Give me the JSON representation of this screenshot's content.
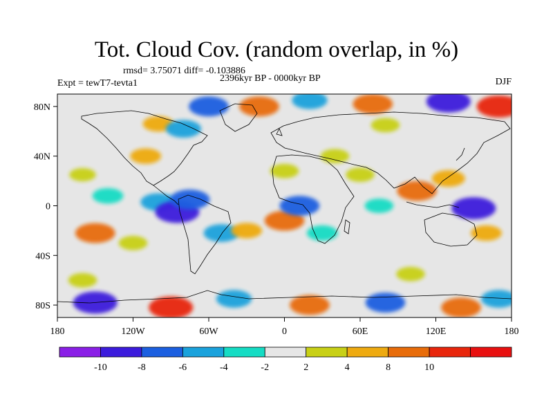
{
  "header": {
    "title": "Tot. Cloud Cov. (random overlap, in %)",
    "stats": "rmsd= 3.75071 diff= -0.103886",
    "period": "2396kyr BP - 0000kyr BP",
    "experiment": "Expt = tewT7-tevta1",
    "season": "DJF"
  },
  "map": {
    "projection": "cylindrical equidistant",
    "lon_range": [
      -180,
      180
    ],
    "lat_range": [
      -90,
      90
    ],
    "background_color": "#e6e6e6",
    "coastline_color": "#000000"
  },
  "axes": {
    "x_ticks": [
      {
        "lon": -180,
        "label": "180"
      },
      {
        "lon": -120,
        "label": "120W"
      },
      {
        "lon": -60,
        "label": "60W"
      },
      {
        "lon": 0,
        "label": "0"
      },
      {
        "lon": 60,
        "label": "60E"
      },
      {
        "lon": 120,
        "label": "120E"
      },
      {
        "lon": 180,
        "label": "180"
      }
    ],
    "y_ticks": [
      {
        "lat": 80,
        "label": "80N"
      },
      {
        "lat": 40,
        "label": "40N"
      },
      {
        "lat": 0,
        "label": "0"
      },
      {
        "lat": -40,
        "label": "40S"
      },
      {
        "lat": -80,
        "label": "80S"
      }
    ]
  },
  "colorbar": {
    "colors": [
      "#8a1fe6",
      "#3c1cdc",
      "#1c5fe0",
      "#1aa2dc",
      "#15dcc4",
      "#e6e6e6",
      "#c8d016",
      "#eeaa10",
      "#e86c0a",
      "#e8260c",
      "#e81010"
    ],
    "labels": [
      "-10",
      "-8",
      "-6",
      "-4",
      "-2",
      "2",
      "4",
      "8",
      "10"
    ]
  },
  "chart_data": {
    "type": "heatmap",
    "title": "Tot. Cloud Cov. (random overlap, in %)",
    "variable": "total cloud cover difference",
    "units": "%",
    "contour_levels": [
      -10,
      -8,
      -6,
      -4,
      -2,
      2,
      4,
      8,
      10
    ],
    "x_range": [
      -180,
      180
    ],
    "y_range": [
      -90,
      90
    ],
    "rmsd": 3.75071,
    "diff": -0.103886,
    "anomalies": [
      {
        "lon": -140,
        "lat": 8,
        "value": -4
      },
      {
        "lon": -100,
        "lat": 3,
        "value": -6
      },
      {
        "lon": -85,
        "lat": -5,
        "value": -10
      },
      {
        "lon": -75,
        "lat": 5,
        "value": -8
      },
      {
        "lon": -110,
        "lat": 40,
        "value": 4
      },
      {
        "lon": -160,
        "lat": 25,
        "value": 2
      },
      {
        "lon": -150,
        "lat": -22,
        "value": 8
      },
      {
        "lon": -120,
        "lat": -30,
        "value": 3
      },
      {
        "lon": -50,
        "lat": -22,
        "value": -6
      },
      {
        "lon": -30,
        "lat": -20,
        "value": 4
      },
      {
        "lon": 0,
        "lat": -12,
        "value": 8
      },
      {
        "lon": 12,
        "lat": 0,
        "value": -8
      },
      {
        "lon": 30,
        "lat": -22,
        "value": -4
      },
      {
        "lon": 0,
        "lat": 28,
        "value": 3
      },
      {
        "lon": 60,
        "lat": 25,
        "value": 3
      },
      {
        "lon": 75,
        "lat": 0,
        "value": -3
      },
      {
        "lon": 105,
        "lat": 12,
        "value": 8
      },
      {
        "lon": 130,
        "lat": 22,
        "value": 5
      },
      {
        "lon": 150,
        "lat": -2,
        "value": -10
      },
      {
        "lon": 160,
        "lat": -22,
        "value": 4
      },
      {
        "lon": 40,
        "lat": 40,
        "value": 3
      },
      {
        "lon": -60,
        "lat": 80,
        "value": -8
      },
      {
        "lon": -20,
        "lat": 80,
        "value": 8
      },
      {
        "lon": 20,
        "lat": 85,
        "value": -6
      },
      {
        "lon": 70,
        "lat": 82,
        "value": 8
      },
      {
        "lon": 130,
        "lat": 84,
        "value": -10
      },
      {
        "lon": 170,
        "lat": 80,
        "value": 10
      },
      {
        "lon": -100,
        "lat": 66,
        "value": 4
      },
      {
        "lon": -80,
        "lat": 62,
        "value": -6
      },
      {
        "lon": 80,
        "lat": 65,
        "value": 3
      },
      {
        "lon": -150,
        "lat": -78,
        "value": -10
      },
      {
        "lon": -90,
        "lat": -82,
        "value": 10
      },
      {
        "lon": -40,
        "lat": -75,
        "value": -6
      },
      {
        "lon": 20,
        "lat": -80,
        "value": 8
      },
      {
        "lon": 80,
        "lat": -78,
        "value": -8
      },
      {
        "lon": 140,
        "lat": -82,
        "value": 8
      },
      {
        "lon": 170,
        "lat": -75,
        "value": -6
      },
      {
        "lon": -160,
        "lat": -60,
        "value": 3
      },
      {
        "lon": 100,
        "lat": -55,
        "value": 3
      }
    ]
  }
}
